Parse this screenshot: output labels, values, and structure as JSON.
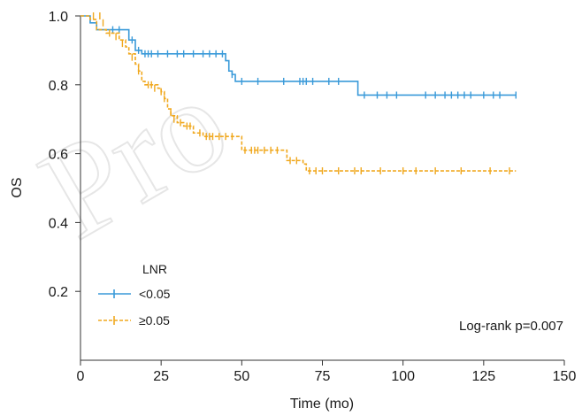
{
  "chart_data": {
    "type": "line",
    "subtype": "kaplan-meier",
    "title": "",
    "xlabel": "Time (mo)",
    "ylabel": "OS",
    "xlim": [
      0,
      150
    ],
    "ylim": [
      0,
      1.0
    ],
    "x_ticks": [
      0,
      25,
      50,
      75,
      100,
      125,
      150
    ],
    "y_ticks": [
      0.2,
      0.4,
      0.6,
      0.8,
      1.0
    ],
    "x_tick_labels": [
      "0",
      "25",
      "50",
      "75",
      "100",
      "125",
      "150"
    ],
    "y_tick_labels": [
      "0.2",
      "0.4",
      "0.6",
      "0.8",
      "1.0"
    ],
    "grid": false,
    "legend": {
      "title": "LNR",
      "placement": "bottom-left"
    },
    "annotation": "Log-rank p=0.007",
    "series": [
      {
        "name": "<0.05",
        "color": "#3a9ad9",
        "dash": "solid",
        "steps": [
          [
            0,
            1.0
          ],
          [
            3,
            0.98
          ],
          [
            5,
            0.96
          ],
          [
            15,
            0.93
          ],
          [
            17,
            0.9
          ],
          [
            19,
            0.89
          ],
          [
            45,
            0.87
          ],
          [
            46,
            0.84
          ],
          [
            47,
            0.83
          ],
          [
            48,
            0.81
          ],
          [
            86,
            0.77
          ],
          [
            135,
            0.77
          ]
        ],
        "censored": [
          [
            10,
            0.96
          ],
          [
            12,
            0.96
          ],
          [
            16,
            0.93
          ],
          [
            18,
            0.9
          ],
          [
            20,
            0.89
          ],
          [
            21,
            0.89
          ],
          [
            22,
            0.89
          ],
          [
            24,
            0.89
          ],
          [
            27,
            0.89
          ],
          [
            30,
            0.89
          ],
          [
            32,
            0.89
          ],
          [
            35,
            0.89
          ],
          [
            38,
            0.89
          ],
          [
            40,
            0.89
          ],
          [
            42,
            0.89
          ],
          [
            44,
            0.89
          ],
          [
            47,
            0.83
          ],
          [
            50,
            0.81
          ],
          [
            55,
            0.81
          ],
          [
            63,
            0.81
          ],
          [
            68,
            0.81
          ],
          [
            69,
            0.81
          ],
          [
            70,
            0.81
          ],
          [
            72,
            0.81
          ],
          [
            77,
            0.81
          ],
          [
            80,
            0.81
          ],
          [
            88,
            0.77
          ],
          [
            92,
            0.77
          ],
          [
            95,
            0.77
          ],
          [
            98,
            0.77
          ],
          [
            107,
            0.77
          ],
          [
            110,
            0.77
          ],
          [
            113,
            0.77
          ],
          [
            115,
            0.77
          ],
          [
            117,
            0.77
          ],
          [
            119,
            0.77
          ],
          [
            121,
            0.77
          ],
          [
            125,
            0.77
          ],
          [
            128,
            0.77
          ],
          [
            130,
            0.77
          ],
          [
            135,
            0.77
          ]
        ]
      },
      {
        "name": "≥0.05",
        "color": "#f0a81e",
        "dash": "dashed",
        "steps": [
          [
            0,
            1.0
          ],
          [
            3,
            0.99
          ],
          [
            5,
            0.96
          ],
          [
            8,
            0.95
          ],
          [
            12,
            0.93
          ],
          [
            14,
            0.91
          ],
          [
            15,
            0.89
          ],
          [
            17,
            0.86
          ],
          [
            18,
            0.84
          ],
          [
            19,
            0.81
          ],
          [
            20,
            0.8
          ],
          [
            24,
            0.79
          ],
          [
            25,
            0.78
          ],
          [
            26,
            0.76
          ],
          [
            27,
            0.73
          ],
          [
            28,
            0.71
          ],
          [
            30,
            0.69
          ],
          [
            32,
            0.68
          ],
          [
            35,
            0.66
          ],
          [
            38,
            0.65
          ],
          [
            50,
            0.61
          ],
          [
            64,
            0.58
          ],
          [
            69,
            0.57
          ],
          [
            70,
            0.55
          ],
          [
            135,
            0.55
          ]
        ],
        "censored": [
          [
            4,
            1.0
          ],
          [
            6,
            1.0
          ],
          [
            7,
            0.98
          ],
          [
            9,
            0.95
          ],
          [
            11,
            0.94
          ],
          [
            13,
            0.92
          ],
          [
            16,
            0.88
          ],
          [
            18,
            0.84
          ],
          [
            21,
            0.8
          ],
          [
            22,
            0.8
          ],
          [
            23,
            0.79
          ],
          [
            25,
            0.78
          ],
          [
            26,
            0.76
          ],
          [
            28,
            0.72
          ],
          [
            29,
            0.7
          ],
          [
            31,
            0.69
          ],
          [
            33,
            0.68
          ],
          [
            34,
            0.68
          ],
          [
            37,
            0.66
          ],
          [
            39,
            0.65
          ],
          [
            40,
            0.65
          ],
          [
            41,
            0.65
          ],
          [
            43,
            0.65
          ],
          [
            45,
            0.65
          ],
          [
            47,
            0.65
          ],
          [
            51,
            0.61
          ],
          [
            53,
            0.61
          ],
          [
            54,
            0.61
          ],
          [
            55,
            0.61
          ],
          [
            57,
            0.61
          ],
          [
            59,
            0.61
          ],
          [
            61,
            0.61
          ],
          [
            65,
            0.58
          ],
          [
            67,
            0.58
          ],
          [
            71,
            0.55
          ],
          [
            73,
            0.55
          ],
          [
            75,
            0.55
          ],
          [
            80,
            0.55
          ],
          [
            85,
            0.55
          ],
          [
            87,
            0.55
          ],
          [
            93,
            0.55
          ],
          [
            100,
            0.55
          ],
          [
            104,
            0.55
          ],
          [
            110,
            0.55
          ],
          [
            118,
            0.55
          ],
          [
            127,
            0.55
          ],
          [
            133,
            0.55
          ]
        ]
      }
    ]
  }
}
